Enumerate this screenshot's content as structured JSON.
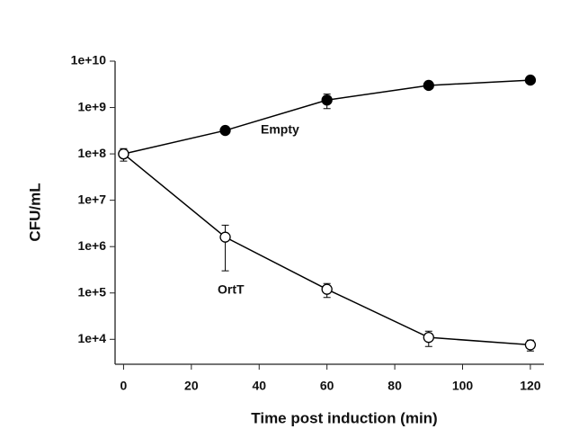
{
  "chart_data": {
    "type": "line",
    "x_label": "Time post induction (min)",
    "y_label": "CFU/mL",
    "log_y": true,
    "xlim": [
      -2.5,
      124
    ],
    "xticks": [
      0,
      20,
      40,
      60,
      80,
      100,
      120
    ],
    "ylim": [
      2900,
      10000000000
    ],
    "yticks": [
      {
        "value": 10000,
        "label": "1e+4"
      },
      {
        "value": 100000,
        "label": "1e+5"
      },
      {
        "value": 1000000,
        "label": "1e+6"
      },
      {
        "value": 10000000,
        "label": "1e+7"
      },
      {
        "value": 100000000,
        "label": "1e+8"
      },
      {
        "value": 1000000000,
        "label": "1e+9"
      },
      {
        "value": 10000000000,
        "label": "1e+10"
      }
    ],
    "series": [
      {
        "name": "Empty",
        "color": "#000000",
        "marker": "filled",
        "x": [
          0,
          30,
          60,
          90,
          120
        ],
        "values": [
          100000000,
          320000000,
          1450000000,
          3000000000,
          3900000000
        ],
        "errors": [
          null,
          null,
          500000000,
          null,
          null
        ]
      },
      {
        "name": "OrtT",
        "color": "#000000",
        "marker": "open",
        "x": [
          0,
          30,
          60,
          90,
          120
        ],
        "values": [
          100000000,
          1600000.0,
          120000,
          11000,
          7600
        ],
        "errors": [
          30000000,
          1300000,
          40000,
          4000,
          2000
        ]
      }
    ]
  }
}
